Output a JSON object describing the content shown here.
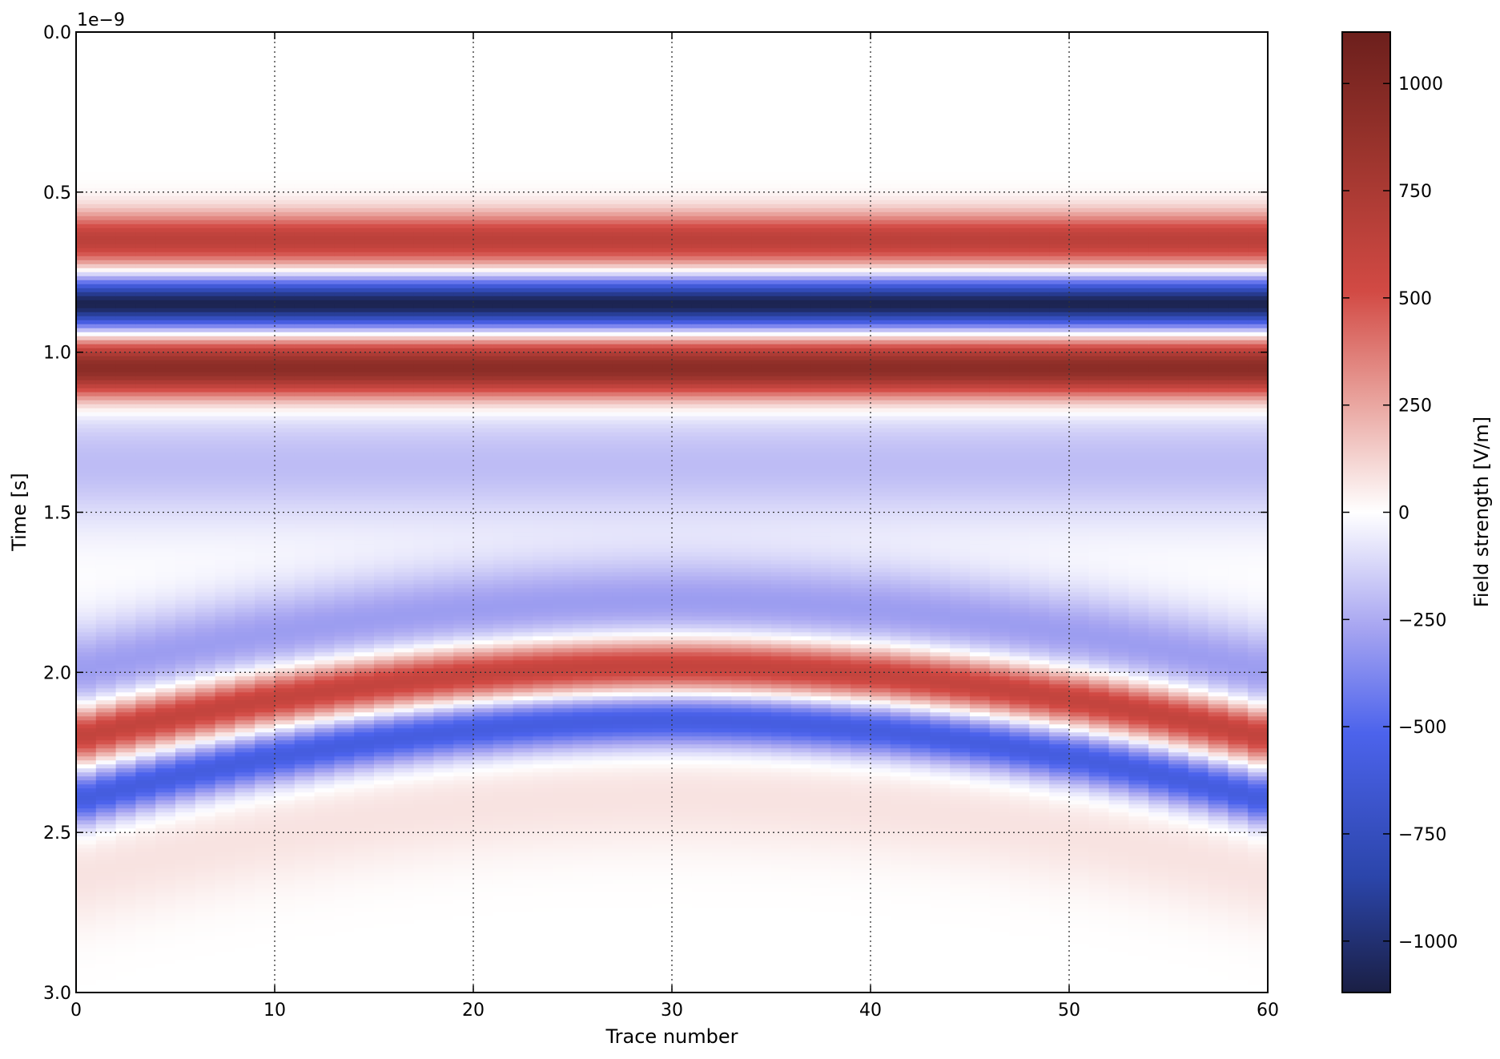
{
  "chart_data": {
    "type": "heatmap",
    "title": "",
    "xlabel": "Trace number",
    "ylabel": "Time [s]",
    "y_offset_text": "1e−9",
    "y_scale_factor": 1e-09,
    "xlim": [
      0,
      60
    ],
    "ylim": [
      3e-09,
      0.0
    ],
    "y_inverted": true,
    "grid": true,
    "x_ticks": [
      0,
      10,
      20,
      30,
      40,
      50,
      60
    ],
    "y_ticks": [
      0.0,
      0.5,
      1.0,
      1.5,
      2.0,
      2.5,
      3.0
    ],
    "colormap": "seismic (dark blue → blue → white → red → dark red)",
    "colorbar": {
      "label": "Field strength [V/m]",
      "range": [
        -1120,
        1120
      ],
      "ticks": [
        1000,
        750,
        500,
        250,
        0,
        -250,
        -500,
        -750,
        -1000
      ],
      "tick_labels": [
        "1000",
        "750",
        "500",
        "250",
        "0",
        "−250",
        "−500",
        "−750",
        "−1000"
      ]
    },
    "num_traces": 60,
    "flat_reflection": {
      "description_of_bands": "horizontal, independent of trace number",
      "bands": [
        {
          "time": 6.5e-10,
          "value": 650
        },
        {
          "time": 8.5e-10,
          "value": -1100
        },
        {
          "time": 1.05e-09,
          "value": 950
        },
        {
          "time": 1.35e-09,
          "value": -200
        }
      ]
    },
    "hyperbola": {
      "apex_trace": 30,
      "apex_time_positive": 1.98e-09,
      "apex_time_negative": 2.15e-09,
      "edge_time_positive_at_trace_0": 2.2e-09,
      "edge_time_negative_at_trace_0": 2.4e-09,
      "precursor_value": -300,
      "positive_value": 650,
      "negative_value": -600,
      "tail_value": 80
    }
  }
}
